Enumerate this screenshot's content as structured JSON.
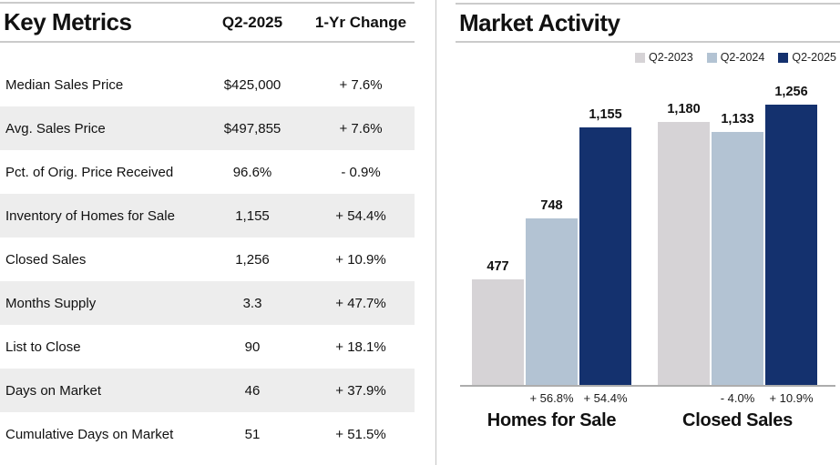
{
  "key_metrics": {
    "title": "Key Metrics",
    "columns": {
      "value": "Q2-2025",
      "change": "1-Yr Change"
    },
    "rows": [
      {
        "label": "Median Sales Price",
        "value": "$425,000",
        "change": "+ 7.6%"
      },
      {
        "label": "Avg. Sales Price",
        "value": "$497,855",
        "change": "+ 7.6%"
      },
      {
        "label": "Pct. of Orig. Price Received",
        "value": "96.6%",
        "change": "- 0.9%"
      },
      {
        "label": "Inventory of Homes for Sale",
        "value": "1,155",
        "change": "+ 54.4%"
      },
      {
        "label": "Closed Sales",
        "value": "1,256",
        "change": "+ 10.9%"
      },
      {
        "label": "Months Supply",
        "value": "3.3",
        "change": "+ 47.7%"
      },
      {
        "label": "List to Close",
        "value": "90",
        "change": "+ 18.1%"
      },
      {
        "label": "Days on Market",
        "value": "46",
        "change": "+ 37.9%"
      },
      {
        "label": "Cumulative Days on Market",
        "value": "51",
        "change": "+ 51.5%"
      }
    ]
  },
  "chart_data": {
    "type": "bar",
    "title": "Market Activity",
    "categories": [
      "Homes for Sale",
      "Closed Sales"
    ],
    "series": [
      {
        "name": "Q2-2023",
        "color": "#d6d3d6",
        "values": [
          477,
          1180
        ],
        "labels": [
          "477",
          "1,180"
        ]
      },
      {
        "name": "Q2-2024",
        "color": "#b3c3d3",
        "values": [
          748,
          1133
        ],
        "labels": [
          "748",
          "1,133"
        ]
      },
      {
        "name": "Q2-2025",
        "color": "#14316e",
        "values": [
          1155,
          1256
        ],
        "labels": [
          "1,155",
          "1,256"
        ]
      }
    ],
    "change_labels": [
      [
        "",
        "+ 56.8%",
        "+ 54.4%"
      ],
      [
        "",
        "- 4.0%",
        "+ 10.9%"
      ]
    ],
    "legend_position": "top-right",
    "grid": false,
    "ylim": [
      0,
      1300
    ]
  },
  "colors": {
    "stripe": "#ededed",
    "rule": "#cbcbcb",
    "axis": "#adadad",
    "q2_2023": "#d6d3d6",
    "q2_2024": "#b3c3d3",
    "q2_2025": "#14316e"
  }
}
